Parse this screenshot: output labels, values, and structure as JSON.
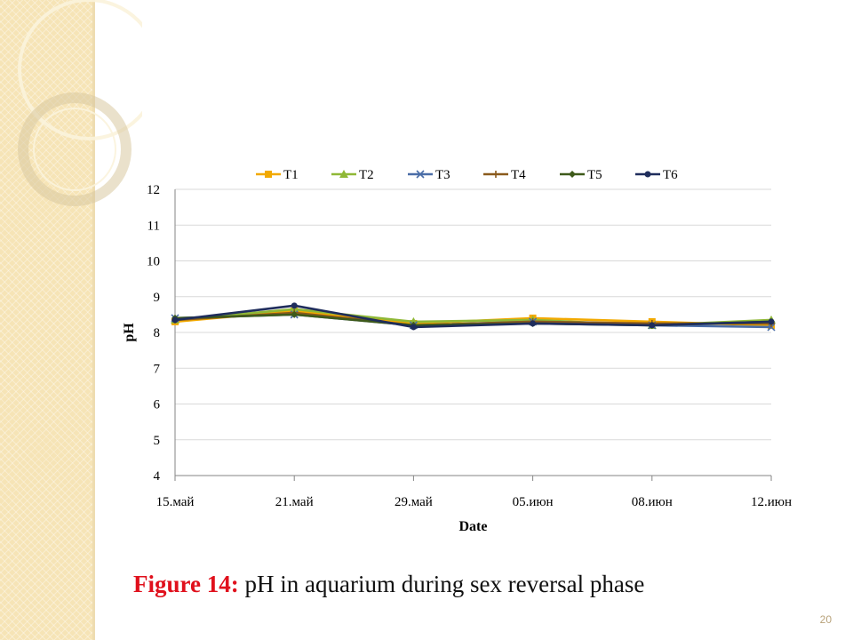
{
  "slide": {
    "caption_label": "Figure 14:",
    "caption_text": " pH in aquarium during sex reversal phase",
    "page_number": "20"
  },
  "chart_data": {
    "type": "line",
    "title": "",
    "xlabel": "Date",
    "ylabel": "pH",
    "ylim": [
      4,
      12
    ],
    "yticks": [
      4,
      5,
      6,
      7,
      8,
      9,
      10,
      11,
      12
    ],
    "grid": true,
    "legend_position": "top",
    "categories": [
      "15.май",
      "21.май",
      "29.май",
      "05.июн",
      "08.июн",
      "12.июн"
    ],
    "series": [
      {
        "name": "T1",
        "color": "#f2a900",
        "marker": "square",
        "values": [
          8.3,
          8.6,
          8.25,
          8.4,
          8.3,
          8.2
        ]
      },
      {
        "name": "T2",
        "color": "#8fb836",
        "marker": "triangle",
        "values": [
          8.35,
          8.65,
          8.3,
          8.35,
          8.2,
          8.35
        ]
      },
      {
        "name": "T3",
        "color": "#4a6da7",
        "marker": "x",
        "values": [
          8.4,
          8.5,
          8.2,
          8.3,
          8.2,
          8.15
        ]
      },
      {
        "name": "T4",
        "color": "#8a5a1c",
        "marker": "plus",
        "values": [
          8.35,
          8.55,
          8.2,
          8.3,
          8.25,
          8.25
        ]
      },
      {
        "name": "T5",
        "color": "#3e5a1a",
        "marker": "diamond",
        "values": [
          8.4,
          8.5,
          8.2,
          8.25,
          8.2,
          8.3
        ]
      },
      {
        "name": "T6",
        "color": "#1f2d5c",
        "marker": "circle",
        "values": [
          8.35,
          8.75,
          8.15,
          8.25,
          8.2,
          8.3
        ]
      }
    ]
  }
}
